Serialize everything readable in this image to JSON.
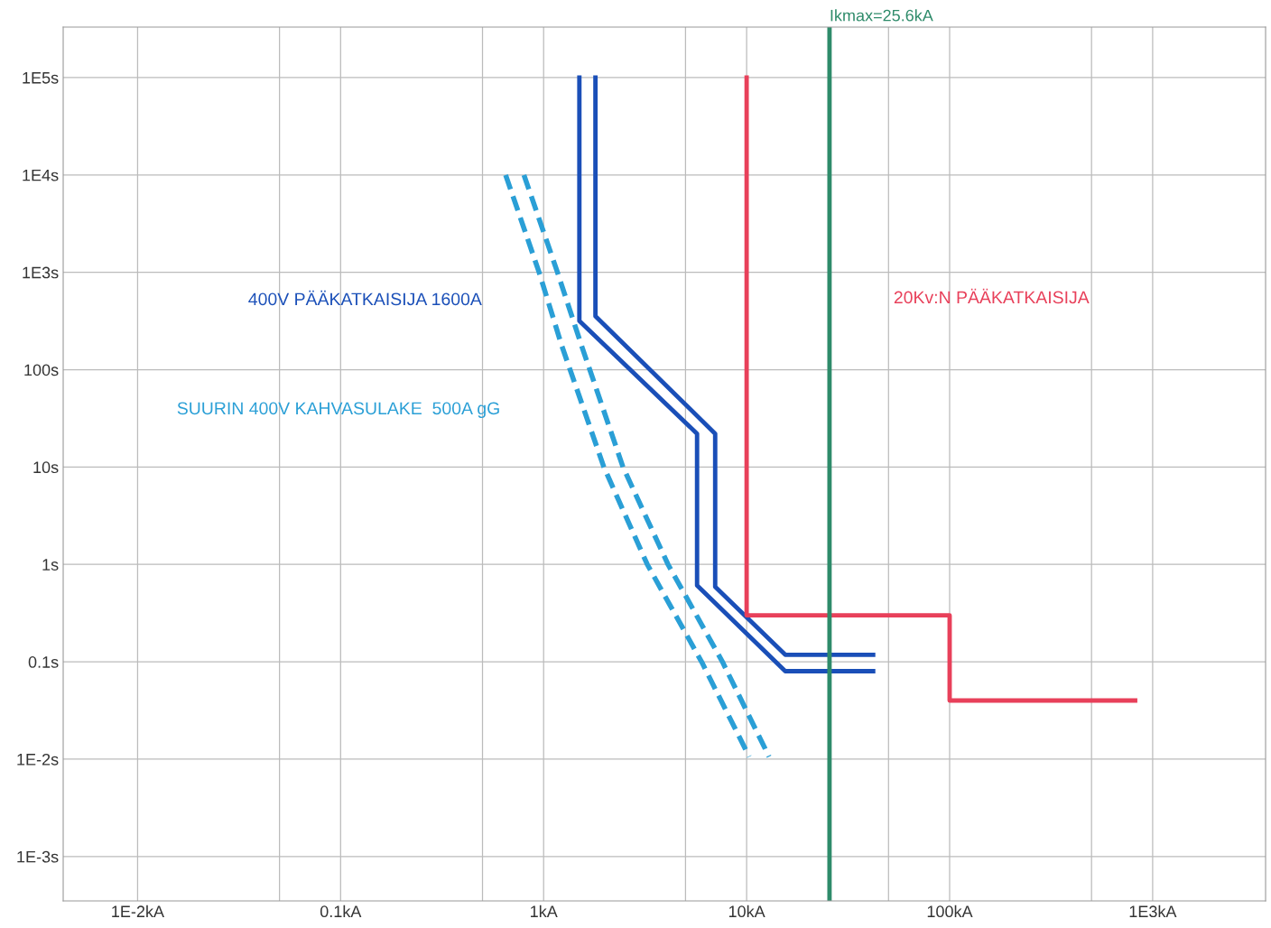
{
  "chart_data": {
    "type": "line",
    "log": "xy",
    "grid": true,
    "legend": false,
    "marker": "none",
    "xlim": [
      0.0043,
      3600
    ],
    "ylim": [
      0.00035,
      330000
    ],
    "xticks": [
      {
        "value": 0.01,
        "label": "1E-2kA"
      },
      {
        "value": 0.05,
        "label": null
      },
      {
        "value": 0.1,
        "label": "0.1kA"
      },
      {
        "value": 0.5,
        "label": null
      },
      {
        "value": 1,
        "label": "1kA"
      },
      {
        "value": 5,
        "label": null
      },
      {
        "value": 10,
        "label": "10kA"
      },
      {
        "value": 50,
        "label": null
      },
      {
        "value": 100,
        "label": "100kA"
      },
      {
        "value": 500,
        "label": null
      },
      {
        "value": 1000,
        "label": "1E3kA"
      }
    ],
    "yticks": [
      {
        "value": 0.001,
        "label": "1E-3s"
      },
      {
        "value": 0.01,
        "label": "1E-2s"
      },
      {
        "value": 0.1,
        "label": "0.1s"
      },
      {
        "value": 1,
        "label": "1s"
      },
      {
        "value": 10,
        "label": "10s"
      },
      {
        "value": 100,
        "label": "100s"
      },
      {
        "value": 1000,
        "label": "1E3s"
      },
      {
        "value": 10000,
        "label": "1E4s"
      },
      {
        "value": 100000,
        "label": "1E5s"
      }
    ],
    "series": [
      {
        "name": "400V PÄÄKATKAISIJA 1600A",
        "color": "#1a4fb8",
        "line_style": "solid",
        "x": [
          1.5,
          1.5,
          5.7,
          5.7,
          15.5,
          42
        ],
        "values": [
          100000,
          316,
          22,
          0.61,
          0.08,
          0.08
        ]
      },
      {
        "color": "#1a4fb8",
        "line_style": "solid",
        "x": [
          1.8,
          1.8,
          7.0,
          7.0,
          15.5,
          42
        ],
        "values": [
          100000,
          355,
          22,
          0.59,
          0.118,
          0.118
        ]
      },
      {
        "name": "SUURIN 400V KAHVASULAKE  500A gG",
        "color": "#2a9fd6",
        "line_style": "dashed",
        "x": [
          0.65,
          0.95,
          1.23,
          1.98,
          3.24,
          6.0,
          10.3
        ],
        "values": [
          10000,
          1000,
          175,
          10,
          1,
          0.1,
          0.0106
        ]
      },
      {
        "color": "#2a9fd6",
        "line_style": "dashed",
        "x": [
          0.8,
          1.17,
          1.54,
          2.46,
          4.1,
          7.6,
          12.9
        ],
        "values": [
          10000,
          1000,
          175,
          10,
          1,
          0.1,
          0.0106
        ]
      },
      {
        "name": "20Kv:N PÄÄKATKAISIJA",
        "color": "#e8405a",
        "line_style": "solid",
        "x": [
          10,
          10,
          100,
          100,
          820
        ],
        "values": [
          100000,
          0.3,
          0.3,
          0.04,
          0.04
        ]
      }
    ],
    "ref_lines": [
      {
        "axis": "x",
        "value": 25.6,
        "label": "Ikmax=25.6kA",
        "color": "#2e8b6a"
      }
    ]
  }
}
